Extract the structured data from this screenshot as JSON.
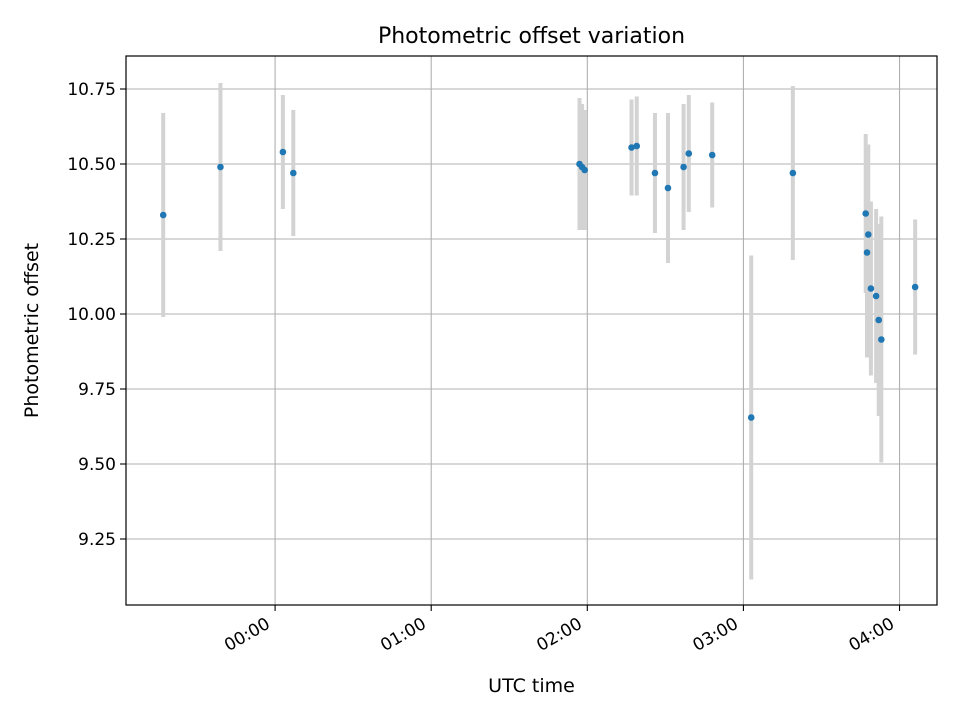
{
  "chart_data": {
    "type": "scatter",
    "title": "Photometric offset variation",
    "xlabel": "UTC time",
    "ylabel": "Photometric offset",
    "x_ticks": [
      "00:00",
      "01:00",
      "02:00",
      "03:00",
      "04:00"
    ],
    "x_tick_values_hours": [
      0,
      1,
      2,
      3,
      4
    ],
    "y_ticks": [
      "9.25",
      "9.50",
      "9.75",
      "10.00",
      "10.25",
      "10.50",
      "10.75"
    ],
    "y_tick_values": [
      9.25,
      9.5,
      9.75,
      10.0,
      10.25,
      10.5,
      10.75
    ],
    "xlim_hours": [
      -0.955,
      4.24
    ],
    "ylim": [
      9.03,
      10.86
    ],
    "grid": true,
    "colors": {
      "point": "#1f77b4",
      "errorbar": "#d3d3d3",
      "grid": "#b0b0b0"
    },
    "points": [
      {
        "t": "23:17",
        "y": 10.33,
        "err_low": 0.34,
        "err_high": 0.34
      },
      {
        "t": "23:39",
        "y": 10.49,
        "err_low": 0.28,
        "err_high": 0.28
      },
      {
        "t": "00:03",
        "y": 10.54,
        "err_low": 0.19,
        "err_high": 0.19
      },
      {
        "t": "00:07",
        "y": 10.47,
        "err_low": 0.21,
        "err_high": 0.21
      },
      {
        "t": "01:57",
        "y": 10.5,
        "err_low": 0.22,
        "err_high": 0.22
      },
      {
        "t": "01:58",
        "y": 10.49,
        "err_low": 0.21,
        "err_high": 0.21
      },
      {
        "t": "01:59",
        "y": 10.48,
        "err_low": 0.2,
        "err_high": 0.2
      },
      {
        "t": "02:17",
        "y": 10.555,
        "err_low": 0.16,
        "err_high": 0.16
      },
      {
        "t": "02:19",
        "y": 10.56,
        "err_low": 0.165,
        "err_high": 0.165
      },
      {
        "t": "02:26",
        "y": 10.47,
        "err_low": 0.2,
        "err_high": 0.2
      },
      {
        "t": "02:31",
        "y": 10.42,
        "err_low": 0.25,
        "err_high": 0.25
      },
      {
        "t": "02:37",
        "y": 10.49,
        "err_low": 0.21,
        "err_high": 0.21
      },
      {
        "t": "02:39",
        "y": 10.535,
        "err_low": 0.195,
        "err_high": 0.195
      },
      {
        "t": "02:48",
        "y": 10.53,
        "err_low": 0.175,
        "err_high": 0.175
      },
      {
        "t": "03:03",
        "y": 9.655,
        "err_low": 0.54,
        "err_high": 0.54
      },
      {
        "t": "03:19",
        "y": 10.47,
        "err_low": 0.29,
        "err_high": 0.29
      },
      {
        "t": "03:47",
        "y": 10.335,
        "err_low": 0.265,
        "err_high": 0.265
      },
      {
        "t": "03:47:30",
        "y": 10.205,
        "err_low": 0.35,
        "err_high": 0.35
      },
      {
        "t": "03:48",
        "y": 10.265,
        "err_low": 0.3,
        "err_high": 0.3
      },
      {
        "t": "03:49",
        "y": 10.085,
        "err_low": 0.29,
        "err_high": 0.29
      },
      {
        "t": "03:51",
        "y": 10.06,
        "err_low": 0.29,
        "err_high": 0.29
      },
      {
        "t": "03:52",
        "y": 9.98,
        "err_low": 0.32,
        "err_high": 0.32
      },
      {
        "t": "03:53",
        "y": 9.915,
        "err_low": 0.41,
        "err_high": 0.41
      },
      {
        "t": "04:06",
        "y": 10.09,
        "err_low": 0.225,
        "err_high": 0.225
      }
    ]
  }
}
